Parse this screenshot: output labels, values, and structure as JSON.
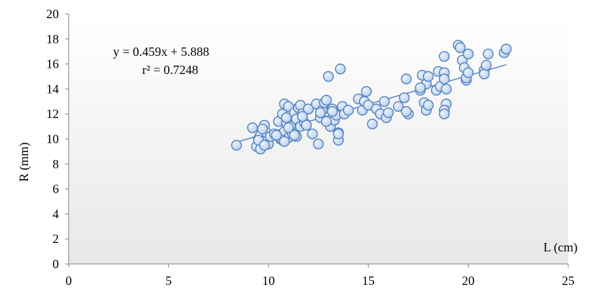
{
  "chart_data": {
    "type": "scatter",
    "xlabel": "L (cm)",
    "ylabel": "R (mm)",
    "xlim": [
      0,
      25
    ],
    "ylim": [
      0,
      20
    ],
    "xticks": [
      0,
      5,
      10,
      15,
      20,
      25
    ],
    "yticks": [
      0,
      2,
      4,
      6,
      8,
      10,
      12,
      14,
      16,
      18,
      20
    ],
    "x_tick_labels": [
      "0",
      "5",
      "10",
      "15",
      "20",
      "25"
    ],
    "y_tick_labels": [
      "0",
      "2",
      "4",
      "6",
      "8",
      "10",
      "12",
      "14",
      "16",
      "18",
      "20"
    ],
    "grid": false,
    "trendline": {
      "type": "linear",
      "slope": 0.459,
      "intercept": 5.888,
      "x_range": [
        8.4,
        21.9
      ],
      "equation_label": "y = 0.459x + 5.888",
      "r2_label": "r² = 0.7248"
    },
    "colors": {
      "background_top": "#ffffff",
      "background_bottom": "#e8e8ea",
      "marker_fill": "#b9cdec",
      "marker_stroke": "#4f81bd",
      "trendline": "#4f81bd",
      "axis": "#7f7f7f"
    },
    "series": [
      {
        "x": [
          8.4,
          9.2,
          9.4,
          9.5,
          9.6,
          9.7,
          9.8,
          9.9,
          10.0,
          9.6,
          9.7,
          10.1,
          9.5,
          9.8,
          10.3,
          10.5,
          10.6,
          10.6,
          10.7,
          10.8,
          10.8,
          10.9,
          11.0,
          10.7,
          10.9,
          11.0,
          11.1,
          11.2,
          11.3,
          11.4,
          11.4,
          11.5,
          11.6,
          11.6,
          11.7,
          11.8,
          11.9,
          12.0,
          12.2,
          12.4,
          12.5,
          12.6,
          12.7,
          12.8,
          12.9,
          13.0,
          13.1,
          13.2,
          13.3,
          13.4,
          13.5,
          13.5,
          13.6,
          13.7,
          13.8,
          14.0,
          14.5,
          14.7,
          14.8,
          14.9,
          15.0,
          15.2,
          15.4,
          15.6,
          15.8,
          15.9,
          16.0,
          16.5,
          16.8,
          16.9,
          17.0,
          17.6,
          17.7,
          17.8,
          17.9,
          18.0,
          17.9,
          18.0,
          18.4,
          18.5,
          18.6,
          18.8,
          18.8,
          18.9,
          18.9,
          18.8,
          18.8,
          19.5,
          19.6,
          19.7,
          19.8,
          19.9,
          19.9,
          20.0,
          20.0,
          20.8,
          20.8,
          20.9,
          21.0,
          21.8,
          21.9,
          10.4,
          11.0,
          11.7,
          12.6,
          13.2,
          16.9,
          17.6,
          18.8,
          10.8,
          11.3,
          12.9,
          13.5
        ],
        "y": [
          9.5,
          10.9,
          9.4,
          10.0,
          10.3,
          9.8,
          11.1,
          10.5,
          9.6,
          9.2,
          10.8,
          10.2,
          9.9,
          9.5,
          10.4,
          11.4,
          10.0,
          10.3,
          12.0,
          12.8,
          10.6,
          11.3,
          10.1,
          9.9,
          11.7,
          12.6,
          11.0,
          10.4,
          12.1,
          11.6,
          10.2,
          12.5,
          11.0,
          12.7,
          12.0,
          11.3,
          11.1,
          12.4,
          10.4,
          12.8,
          9.6,
          11.7,
          12.3,
          12.9,
          13.1,
          15.0,
          11.0,
          12.4,
          11.5,
          11.9,
          10.5,
          9.9,
          15.6,
          12.6,
          12.0,
          12.3,
          13.2,
          12.3,
          13.0,
          13.8,
          12.7,
          11.2,
          12.4,
          12.0,
          13.0,
          11.7,
          12.1,
          12.6,
          13.3,
          14.8,
          12.0,
          13.9,
          15.1,
          12.9,
          14.4,
          15.0,
          12.3,
          12.7,
          13.9,
          15.4,
          14.2,
          16.6,
          15.3,
          14.0,
          12.8,
          12.3,
          12.0,
          17.5,
          17.3,
          16.3,
          15.7,
          14.7,
          14.9,
          15.3,
          16.8,
          15.5,
          15.2,
          15.9,
          16.8,
          16.9,
          17.2,
          10.3,
          10.9,
          11.8,
          12.1,
          12.2,
          12.2,
          14.1,
          14.8,
          9.8,
          10.3,
          11.4,
          10.4
        ]
      }
    ]
  }
}
